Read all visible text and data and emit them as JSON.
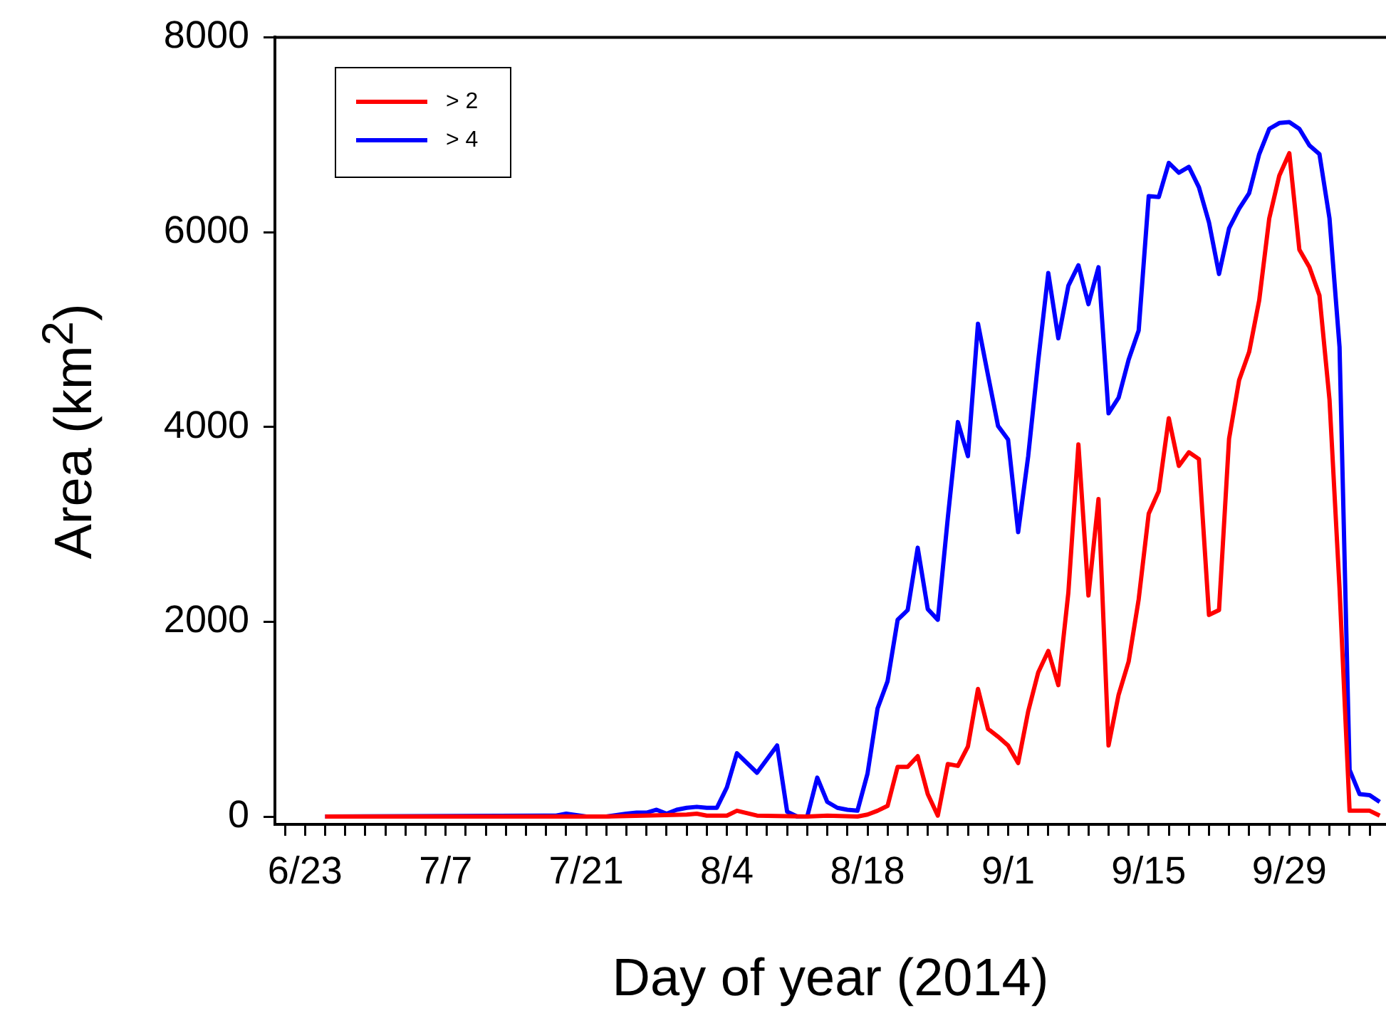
{
  "chart_data": {
    "type": "line",
    "xlabel": "Day of year (2014)",
    "ylabel": "Area (km$^{2}$)",
    "xlim": [
      "2014-06-20",
      "2014-10-08T15:00"
    ],
    "xticks": [
      {
        "value": "2014-06-21",
        "label": null
      },
      {
        "value": "2014-06-23",
        "label": "6/23"
      },
      {
        "value": "2014-06-25",
        "label": null
      },
      {
        "value": "2014-06-27",
        "label": null
      },
      {
        "value": "2014-06-29",
        "label": null
      },
      {
        "value": "2014-07-01",
        "label": null
      },
      {
        "value": "2014-07-03",
        "label": null
      },
      {
        "value": "2014-07-05",
        "label": null
      },
      {
        "value": "2014-07-07",
        "label": "7/7"
      },
      {
        "value": "2014-07-09",
        "label": null
      },
      {
        "value": "2014-07-11",
        "label": null
      },
      {
        "value": "2014-07-13",
        "label": null
      },
      {
        "value": "2014-07-15",
        "label": null
      },
      {
        "value": "2014-07-17",
        "label": null
      },
      {
        "value": "2014-07-19",
        "label": null
      },
      {
        "value": "2014-07-21",
        "label": "7/21"
      },
      {
        "value": "2014-07-23",
        "label": null
      },
      {
        "value": "2014-07-25",
        "label": null
      },
      {
        "value": "2014-07-27",
        "label": null
      },
      {
        "value": "2014-07-29",
        "label": null
      },
      {
        "value": "2014-07-31",
        "label": null
      },
      {
        "value": "2014-08-02",
        "label": null
      },
      {
        "value": "2014-08-04",
        "label": "8/4"
      },
      {
        "value": "2014-08-06",
        "label": null
      },
      {
        "value": "2014-08-08",
        "label": null
      },
      {
        "value": "2014-08-10",
        "label": null
      },
      {
        "value": "2014-08-12",
        "label": null
      },
      {
        "value": "2014-08-14",
        "label": null
      },
      {
        "value": "2014-08-16",
        "label": null
      },
      {
        "value": "2014-08-18",
        "label": "8/18"
      },
      {
        "value": "2014-08-20",
        "label": null
      },
      {
        "value": "2014-08-22",
        "label": null
      },
      {
        "value": "2014-08-24",
        "label": null
      },
      {
        "value": "2014-08-26",
        "label": null
      },
      {
        "value": "2014-08-28",
        "label": null
      },
      {
        "value": "2014-08-30",
        "label": null
      },
      {
        "value": "2014-09-01",
        "label": "9/1"
      },
      {
        "value": "2014-09-03",
        "label": null
      },
      {
        "value": "2014-09-05",
        "label": null
      },
      {
        "value": "2014-09-07",
        "label": null
      },
      {
        "value": "2014-09-09",
        "label": null
      },
      {
        "value": "2014-09-11",
        "label": null
      },
      {
        "value": "2014-09-13",
        "label": null
      },
      {
        "value": "2014-09-15",
        "label": "9/15"
      },
      {
        "value": "2014-09-17",
        "label": null
      },
      {
        "value": "2014-09-19",
        "label": null
      },
      {
        "value": "2014-09-21",
        "label": null
      },
      {
        "value": "2014-09-23",
        "label": null
      },
      {
        "value": "2014-09-25",
        "label": null
      },
      {
        "value": "2014-09-27",
        "label": null
      },
      {
        "value": "2014-09-29",
        "label": "9/29"
      },
      {
        "value": "2014-10-01",
        "label": null
      },
      {
        "value": "2014-10-03",
        "label": null
      },
      {
        "value": "2014-10-05",
        "label": null
      },
      {
        "value": "2014-10-07",
        "label": null
      }
    ],
    "ylim": [
      -80,
      8000
    ],
    "yticks": [
      0,
      2000,
      4000,
      6000,
      8000
    ],
    "legend": "top left",
    "marker": "none",
    "line_style": "solid",
    "series": [
      {
        "name": "> 2",
        "color": "#ff0000",
        "x": [
          "2014-06-25",
          "2014-07-23",
          "2014-07-31",
          "2014-08-01",
          "2014-08-02",
          "2014-08-04",
          "2014-08-05",
          "2014-08-07",
          "2014-08-12",
          "2014-08-14",
          "2014-08-17",
          "2014-08-18",
          "2014-08-19",
          "2014-08-20",
          "2014-08-21",
          "2014-08-22",
          "2014-08-23",
          "2014-08-24",
          "2014-08-25",
          "2014-08-26",
          "2014-08-27",
          "2014-08-28",
          "2014-08-29",
          "2014-08-30",
          "2014-08-31",
          "2014-09-01",
          "2014-09-02",
          "2014-09-03",
          "2014-09-04",
          "2014-09-05",
          "2014-09-06",
          "2014-09-07",
          "2014-09-08",
          "2014-09-09",
          "2014-09-10",
          "2014-09-11",
          "2014-09-12",
          "2014-09-13",
          "2014-09-14",
          "2014-09-15",
          "2014-09-16",
          "2014-09-17",
          "2014-09-18",
          "2014-09-19",
          "2014-09-20",
          "2014-09-21",
          "2014-09-22",
          "2014-09-23",
          "2014-09-24",
          "2014-09-25",
          "2014-09-26",
          "2014-09-27",
          "2014-09-28",
          "2014-09-29",
          "2014-09-30",
          "2014-10-01",
          "2014-10-02",
          "2014-10-03",
          "2014-10-04",
          "2014-10-05",
          "2014-10-06",
          "2014-10-07",
          "2014-10-08"
        ],
        "values": [
          0,
          0,
          20,
          30,
          10,
          10,
          60,
          10,
          0,
          10,
          0,
          20,
          60,
          110,
          510,
          510,
          620,
          230,
          10,
          540,
          520,
          720,
          1310,
          900,
          820,
          730,
          550,
          1080,
          1480,
          1700,
          1350,
          2300,
          3820,
          2270,
          3260,
          730,
          1250,
          1590,
          2230,
          3110,
          3340,
          4090,
          3600,
          3740,
          3670,
          2070,
          2120,
          3880,
          4480,
          4770,
          5300,
          6140,
          6580,
          6810,
          5820,
          5640,
          5350,
          4280,
          2340,
          60,
          60,
          60,
          10
        ]
      },
      {
        "name": "> 4",
        "color": "#0000ff",
        "x": [
          "2014-06-25",
          "2014-07-18",
          "2014-07-19",
          "2014-07-21",
          "2014-07-23",
          "2014-07-25",
          "2014-07-26",
          "2014-07-27",
          "2014-07-28",
          "2014-07-29",
          "2014-07-30",
          "2014-07-31",
          "2014-08-01",
          "2014-08-02",
          "2014-08-03",
          "2014-08-04",
          "2014-08-05",
          "2014-08-07",
          "2014-08-09",
          "2014-08-10",
          "2014-08-11",
          "2014-08-12",
          "2014-08-13",
          "2014-08-14",
          "2014-08-15",
          "2014-08-16",
          "2014-08-17",
          "2014-08-18",
          "2014-08-19",
          "2014-08-20",
          "2014-08-21",
          "2014-08-22",
          "2014-08-23",
          "2014-08-24",
          "2014-08-25",
          "2014-08-26",
          "2014-08-27",
          "2014-08-28",
          "2014-08-29",
          "2014-08-30",
          "2014-08-31",
          "2014-09-01",
          "2014-09-02",
          "2014-09-03",
          "2014-09-04",
          "2014-09-05",
          "2014-09-06",
          "2014-09-07",
          "2014-09-08",
          "2014-09-09",
          "2014-09-10",
          "2014-09-11",
          "2014-09-12",
          "2014-09-13",
          "2014-09-14",
          "2014-09-15",
          "2014-09-16",
          "2014-09-17",
          "2014-09-18",
          "2014-09-19",
          "2014-09-20",
          "2014-09-21",
          "2014-09-22",
          "2014-09-23",
          "2014-09-24",
          "2014-09-25",
          "2014-09-26",
          "2014-09-27",
          "2014-09-28",
          "2014-09-29",
          "2014-09-30",
          "2014-10-01",
          "2014-10-02",
          "2014-10-03",
          "2014-10-04",
          "2014-10-05",
          "2014-10-06",
          "2014-10-07",
          "2014-10-08"
        ],
        "values": [
          0,
          10,
          30,
          0,
          0,
          30,
          40,
          40,
          70,
          30,
          70,
          90,
          100,
          90,
          90,
          300,
          650,
          450,
          730,
          50,
          0,
          0,
          400,
          150,
          90,
          70,
          60,
          440,
          1110,
          1390,
          2020,
          2120,
          2760,
          2130,
          2020,
          3070,
          4050,
          3700,
          5060,
          4530,
          4010,
          3870,
          2920,
          3700,
          4680,
          5580,
          4910,
          5450,
          5660,
          5260,
          5640,
          4140,
          4300,
          4690,
          4990,
          6370,
          6360,
          6710,
          6610,
          6670,
          6460,
          6100,
          5570,
          6040,
          6240,
          6400,
          6800,
          7060,
          7120,
          7130,
          7060,
          6890,
          6800,
          6140,
          4820,
          480,
          230,
          220,
          150
        ]
      }
    ]
  }
}
